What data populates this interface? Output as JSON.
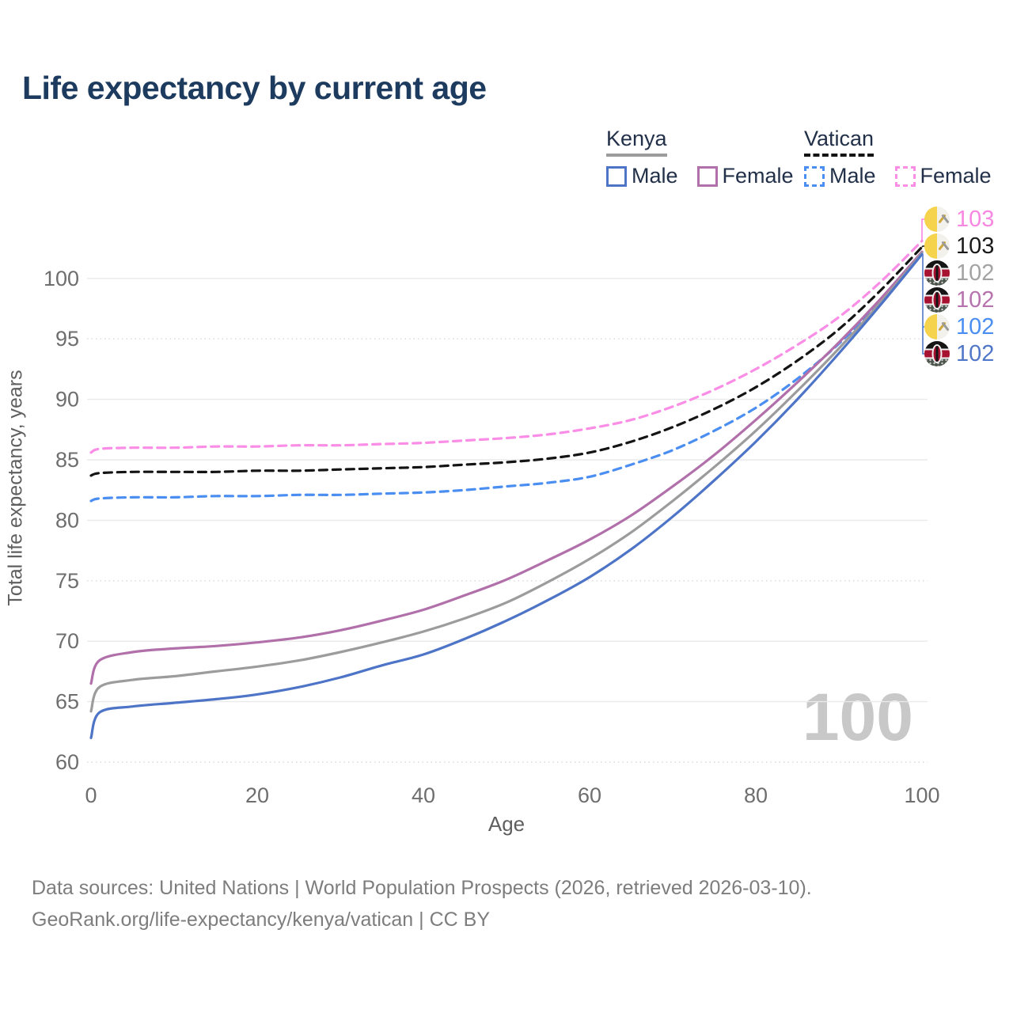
{
  "header": {
    "title": "Life expectancy by current age"
  },
  "legend": {
    "groups": [
      {
        "country": "Kenya",
        "items": [
          {
            "label": "Male",
            "series": "Kenya Male"
          },
          {
            "label": "Female",
            "series": "Kenya Female"
          }
        ]
      },
      {
        "country": "Vatican",
        "items": [
          {
            "label": "Male",
            "series": "Vatican Male"
          },
          {
            "label": "Female",
            "series": "Vatican Female"
          }
        ]
      }
    ]
  },
  "chart_data": {
    "type": "line",
    "title": "Life expectancy by current age",
    "xlabel": "Age",
    "ylabel": "Total life expectancy, years",
    "xlim": [
      0,
      100
    ],
    "ylim": [
      60,
      103.5
    ],
    "xticks": [
      0,
      20,
      40,
      60,
      80,
      100
    ],
    "yticks": [
      60,
      65,
      70,
      75,
      80,
      85,
      90,
      95,
      100
    ],
    "grid": "horizontal",
    "legend_position": "top-right",
    "age_indicator": "100",
    "x": [
      0,
      1,
      5,
      10,
      15,
      20,
      25,
      30,
      35,
      40,
      45,
      50,
      55,
      60,
      65,
      70,
      75,
      80,
      85,
      90,
      95,
      100
    ],
    "series": [
      {
        "name": "Vatican Female",
        "country": "Vatican",
        "sex": "Female",
        "color": "#fa8de5",
        "dash": true,
        "values": [
          85.6,
          85.9,
          86.0,
          86.0,
          86.1,
          86.1,
          86.2,
          86.2,
          86.3,
          86.4,
          86.6,
          86.8,
          87.1,
          87.6,
          88.3,
          89.4,
          90.8,
          92.5,
          94.5,
          96.8,
          99.7,
          103.1
        ]
      },
      {
        "name": "Vatican Both sexes",
        "country": "Vatican",
        "sex": "Both",
        "color": "#141414",
        "dash": true,
        "values": [
          83.7,
          83.9,
          84.0,
          84.0,
          84.0,
          84.1,
          84.1,
          84.2,
          84.3,
          84.4,
          84.6,
          84.8,
          85.1,
          85.6,
          86.5,
          87.7,
          89.2,
          91.0,
          93.2,
          95.8,
          99.0,
          102.6
        ]
      },
      {
        "name": "Vatican Male",
        "country": "Vatican",
        "sex": "Male",
        "color": "#4b8ef2",
        "dash": true,
        "values": [
          81.6,
          81.8,
          81.9,
          81.9,
          82.0,
          82.0,
          82.1,
          82.1,
          82.2,
          82.3,
          82.5,
          82.8,
          83.1,
          83.6,
          84.6,
          85.8,
          87.4,
          89.3,
          91.7,
          94.6,
          98.1,
          102.1
        ]
      },
      {
        "name": "Kenya Female",
        "country": "Kenya",
        "sex": "Female",
        "color": "#b170aa",
        "dash": false,
        "values": [
          66.5,
          68.4,
          69.1,
          69.4,
          69.6,
          69.9,
          70.3,
          70.9,
          71.7,
          72.6,
          73.8,
          75.1,
          76.7,
          78.4,
          80.4,
          82.8,
          85.4,
          88.3,
          91.4,
          94.7,
          98.3,
          102.2
        ]
      },
      {
        "name": "Kenya Both sexes",
        "country": "Kenya",
        "sex": "Both",
        "color": "#9c9c9c",
        "dash": false,
        "values": [
          64.2,
          66.2,
          66.8,
          67.1,
          67.5,
          67.9,
          68.4,
          69.1,
          69.9,
          70.8,
          71.9,
          73.2,
          74.9,
          76.8,
          79.0,
          81.6,
          84.4,
          87.4,
          90.7,
          94.2,
          98.0,
          102.1
        ]
      },
      {
        "name": "Kenya Male",
        "country": "Kenya",
        "sex": "Male",
        "color": "#4d74c6",
        "dash": false,
        "values": [
          62.0,
          64.1,
          64.6,
          64.9,
          65.2,
          65.6,
          66.2,
          67.0,
          68.0,
          68.9,
          70.2,
          71.7,
          73.4,
          75.3,
          77.6,
          80.3,
          83.3,
          86.5,
          90.0,
          93.8,
          97.8,
          102.0
        ]
      }
    ],
    "end_labels": [
      {
        "value": "103",
        "flag": "vatican",
        "color": "#f887e2",
        "series": "Vatican Female"
      },
      {
        "value": "103",
        "flag": "vatican",
        "color": "#1a1a1a",
        "series": "Vatican Both sexes"
      },
      {
        "value": "102",
        "flag": "kenya",
        "color": "#a3a3a3",
        "series": "Kenya Both sexes"
      },
      {
        "value": "102",
        "flag": "kenya",
        "color": "#b673ae",
        "series": "Kenya Female"
      },
      {
        "value": "102",
        "flag": "vatican",
        "color": "#4b8ef2",
        "series": "Vatican Male"
      },
      {
        "value": "102",
        "flag": "kenya",
        "color": "#5077c8",
        "series": "Kenya Male"
      }
    ]
  },
  "footer": {
    "line1": "Data sources: United Nations | World Population Prospects (2026, retrieved 2026-03-10).",
    "line2": "GeoRank.org/life-expectancy/kenya/vatican | CC BY"
  }
}
